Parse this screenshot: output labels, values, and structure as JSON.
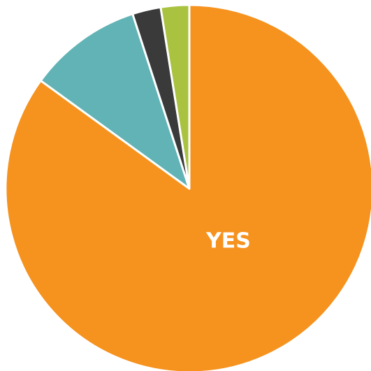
{
  "chart_data": {
    "type": "pie",
    "start_angle_deg": 0,
    "direction": "clockwise",
    "slices": [
      {
        "label": "YES",
        "value": 85,
        "color": "#F6921E",
        "show_label": true
      },
      {
        "label": "",
        "value": 10,
        "color": "#62B3B5",
        "show_label": false
      },
      {
        "label": "",
        "value": 2.5,
        "color": "#3A3A3A",
        "show_label": false
      },
      {
        "label": "",
        "value": 2.5,
        "color": "#A9C23F",
        "show_label": false
      }
    ]
  }
}
